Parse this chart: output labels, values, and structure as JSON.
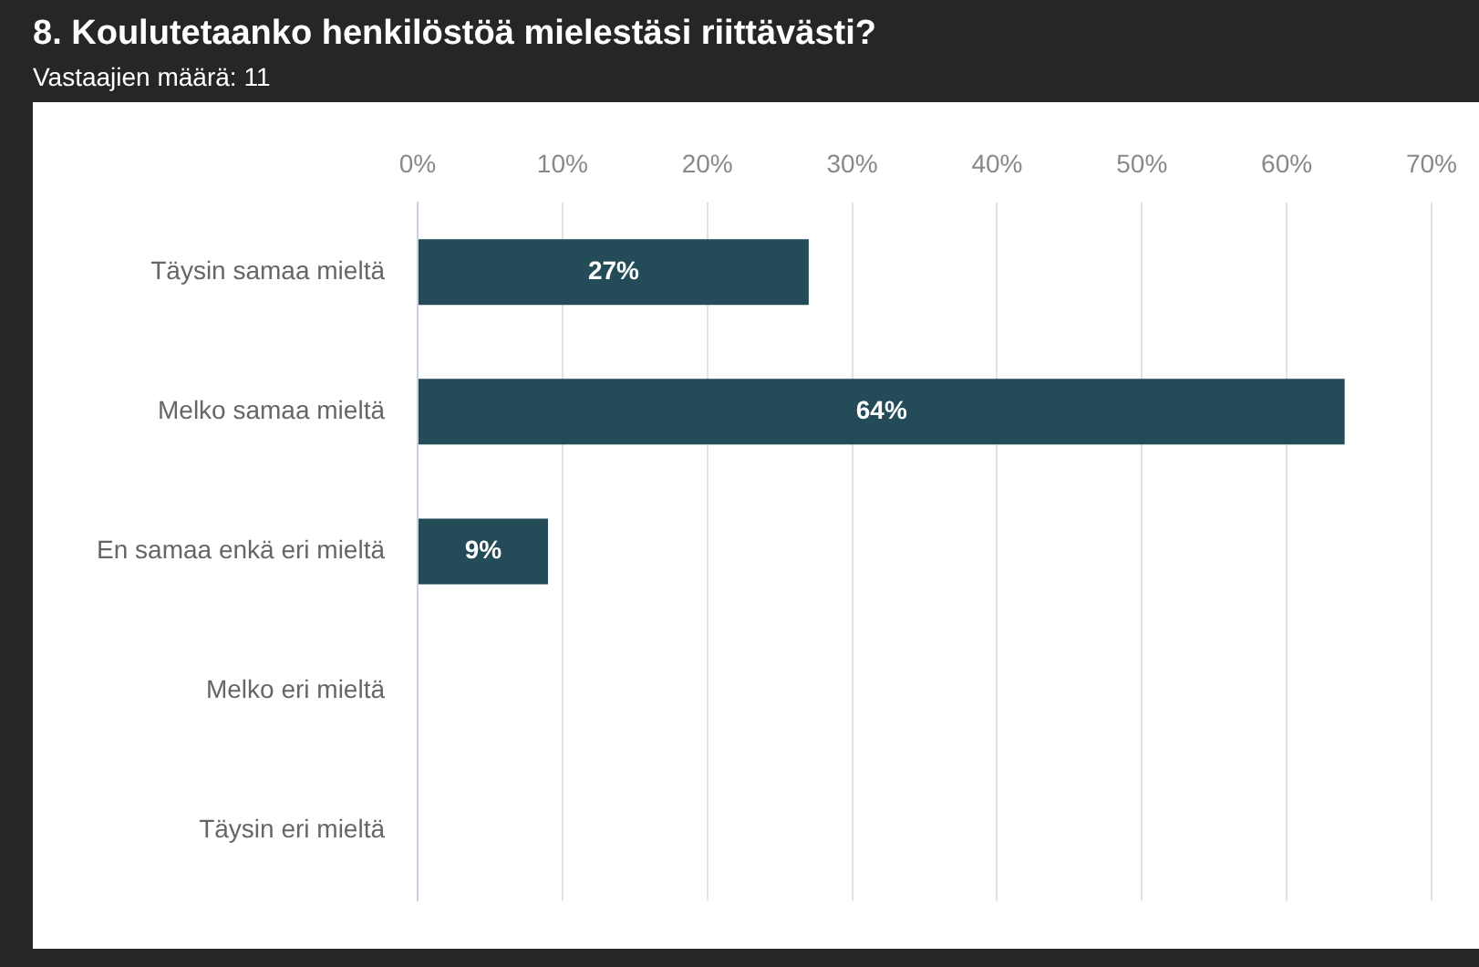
{
  "chart_data": {
    "type": "bar",
    "orientation": "horizontal",
    "title": "8. Koulutetaanko henkilöstöä mielestäsi riittävästi?",
    "subtitle": "Vastaajien määrä: 11",
    "categories": [
      "Täysin samaa mieltä",
      "Melko samaa mieltä",
      "En samaa enkä eri mieltä",
      "Melko eri mieltä",
      "Täysin eri mieltä"
    ],
    "values": [
      27,
      64,
      9,
      0,
      0
    ],
    "value_labels": [
      "27%",
      "64%",
      "9%",
      null,
      null
    ],
    "color": "#234b58",
    "xlim": [
      0,
      70
    ],
    "xticks": [
      {
        "value": 0,
        "label": "0%"
      },
      {
        "value": 10,
        "label": "10%"
      },
      {
        "value": 20,
        "label": "20%"
      },
      {
        "value": 30,
        "label": "30%"
      },
      {
        "value": 40,
        "label": "40%"
      },
      {
        "value": 50,
        "label": "50%"
      },
      {
        "value": 60,
        "label": "60%"
      },
      {
        "value": 70,
        "label": "70%"
      }
    ],
    "grid": "x",
    "legend": false
  }
}
